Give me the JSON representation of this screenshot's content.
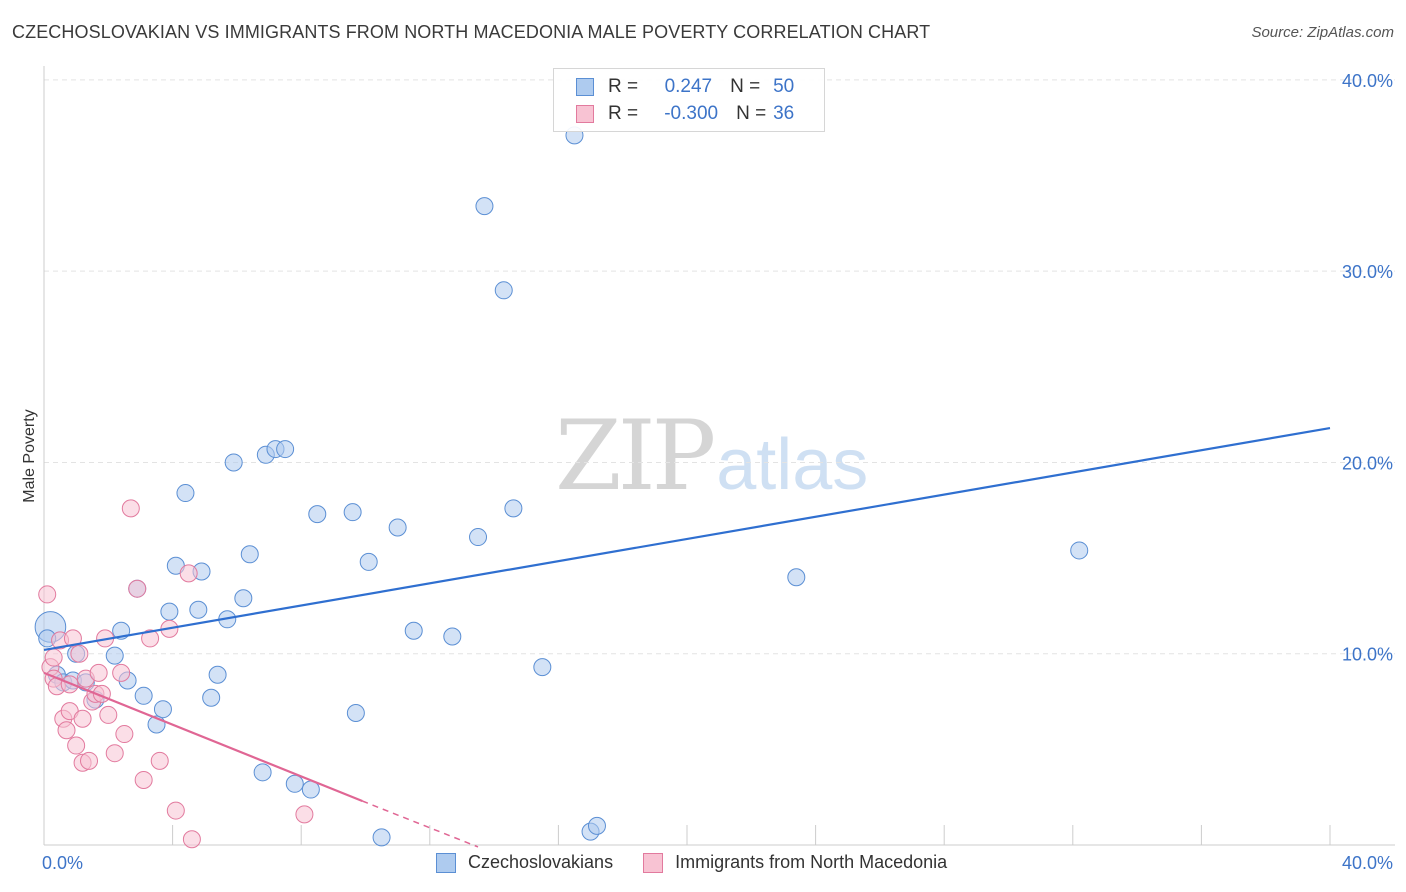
{
  "title": "CZECHOSLOVAKIAN VS IMMIGRANTS FROM NORTH MACEDONIA MALE POVERTY CORRELATION CHART",
  "source": "Source: ZipAtlas.com",
  "watermark": {
    "zip": "ZIP",
    "atlas": "atlas"
  },
  "legend": {
    "rows": [
      {
        "r_label": "R =",
        "r_value": "0.247",
        "n_label": "N =",
        "n_value": "50",
        "color": "#aecbef",
        "border": "#5b8fd4"
      },
      {
        "r_label": "R =",
        "r_value": "-0.300",
        "n_label": "N =",
        "n_value": "36",
        "color": "#f8c3d3",
        "border": "#e27a9e"
      }
    ]
  },
  "bottom_legend": [
    "Czechoslovakians",
    "Immigrants from North Macedonia"
  ],
  "chart_data": {
    "type": "scatter",
    "title": "CZECHOSLOVAKIAN VS IMMIGRANTS FROM NORTH MACEDONIA MALE POVERTY CORRELATION CHART",
    "xlabel": "",
    "ylabel": "Male Poverty",
    "xlim": [
      0,
      40
    ],
    "ylim": [
      0,
      40
    ],
    "x_tick_labels": [
      "0.0%",
      "40.0%"
    ],
    "y_ticks": [
      10,
      20,
      30,
      40
    ],
    "y_tick_labels": [
      "10.0%",
      "20.0%",
      "30.0%",
      "40.0%"
    ],
    "grid": true,
    "series": [
      {
        "name": "Czechoslovakians",
        "color": "#aecbef",
        "stroke": "#5b8fd4",
        "trend_color": "#2f6fd0",
        "trend": {
          "x0": 0,
          "y0": 10.2,
          "x1": 40,
          "y1": 21.8
        },
        "points": [
          [
            0.2,
            11.4,
            1.8
          ],
          [
            0.4,
            8.9,
            1
          ],
          [
            0.6,
            8.5,
            1
          ],
          [
            0.9,
            8.6,
            1
          ],
          [
            1.0,
            10.0,
            1
          ],
          [
            1.3,
            8.5,
            1
          ],
          [
            1.6,
            7.6,
            1
          ],
          [
            2.2,
            9.9,
            1
          ],
          [
            2.4,
            11.2,
            1
          ],
          [
            2.6,
            8.6,
            1
          ],
          [
            2.9,
            13.4,
            1
          ],
          [
            3.1,
            7.8,
            1
          ],
          [
            3.5,
            6.3,
            1
          ],
          [
            3.7,
            7.1,
            1
          ],
          [
            3.9,
            12.2,
            1
          ],
          [
            4.1,
            14.6,
            1
          ],
          [
            4.4,
            18.4,
            1
          ],
          [
            4.8,
            12.3,
            1
          ],
          [
            4.9,
            14.3,
            1
          ],
          [
            5.2,
            7.7,
            1
          ],
          [
            5.4,
            8.9,
            1
          ],
          [
            5.7,
            11.8,
            1
          ],
          [
            5.9,
            20.0,
            1
          ],
          [
            6.2,
            12.9,
            1
          ],
          [
            6.4,
            15.2,
            1
          ],
          [
            6.8,
            3.8,
            1
          ],
          [
            6.9,
            20.4,
            1
          ],
          [
            7.2,
            20.7,
            1
          ],
          [
            7.5,
            20.7,
            1
          ],
          [
            7.8,
            3.2,
            1
          ],
          [
            8.3,
            2.9,
            1
          ],
          [
            8.5,
            17.3,
            1
          ],
          [
            9.6,
            17.4,
            1
          ],
          [
            9.7,
            6.9,
            1
          ],
          [
            10.1,
            14.8,
            1
          ],
          [
            10.5,
            0.4,
            1
          ],
          [
            11.0,
            16.6,
            1
          ],
          [
            11.5,
            11.2,
            1
          ],
          [
            12.7,
            10.9,
            1
          ],
          [
            13.5,
            16.1,
            1
          ],
          [
            13.7,
            33.4,
            1
          ],
          [
            14.3,
            29.0,
            1
          ],
          [
            14.6,
            17.6,
            1
          ],
          [
            15.5,
            9.3,
            1
          ],
          [
            16.5,
            37.1,
            1
          ],
          [
            17.0,
            0.7,
            1
          ],
          [
            17.2,
            1.0,
            1
          ],
          [
            23.4,
            14.0,
            1
          ],
          [
            32.2,
            15.4,
            1
          ],
          [
            0.1,
            10.8,
            1
          ]
        ]
      },
      {
        "name": "Immigrants from North Macedonia",
        "color": "#f8c3d3",
        "stroke": "#e27a9e",
        "trend_color": "#e06694",
        "trend": {
          "x0": 0,
          "y0": 9.0,
          "x1": 9.9,
          "y1": 2.3,
          "dash_to_x": 13.5,
          "dash_to_y": -0.1
        },
        "points": [
          [
            0.1,
            13.1,
            1
          ],
          [
            0.2,
            9.3,
            1
          ],
          [
            0.3,
            8.7,
            1
          ],
          [
            0.4,
            8.3,
            1
          ],
          [
            0.5,
            10.7,
            1
          ],
          [
            0.6,
            6.6,
            1
          ],
          [
            0.7,
            6.0,
            1
          ],
          [
            0.8,
            7.0,
            1
          ],
          [
            0.8,
            8.4,
            1
          ],
          [
            0.9,
            10.8,
            1
          ],
          [
            1.0,
            5.2,
            1
          ],
          [
            1.1,
            10.0,
            1
          ],
          [
            1.2,
            6.6,
            1
          ],
          [
            1.2,
            4.3,
            1
          ],
          [
            1.3,
            8.7,
            1
          ],
          [
            1.4,
            4.4,
            1
          ],
          [
            1.5,
            7.5,
            1
          ],
          [
            1.6,
            7.9,
            1
          ],
          [
            1.7,
            9.0,
            1
          ],
          [
            1.8,
            7.9,
            1
          ],
          [
            1.9,
            10.8,
            1
          ],
          [
            2.0,
            6.8,
            1
          ],
          [
            2.2,
            4.8,
            1
          ],
          [
            2.4,
            9.0,
            1
          ],
          [
            2.5,
            5.8,
            1
          ],
          [
            2.7,
            17.6,
            1
          ],
          [
            2.9,
            13.4,
            1
          ],
          [
            3.1,
            3.4,
            1
          ],
          [
            3.3,
            10.8,
            1
          ],
          [
            3.6,
            4.4,
            1
          ],
          [
            3.9,
            11.3,
            1
          ],
          [
            4.1,
            1.8,
            1
          ],
          [
            4.5,
            14.2,
            1
          ],
          [
            4.6,
            0.3,
            1
          ],
          [
            8.1,
            1.6,
            1
          ],
          [
            0.3,
            9.8,
            1
          ]
        ]
      }
    ]
  }
}
